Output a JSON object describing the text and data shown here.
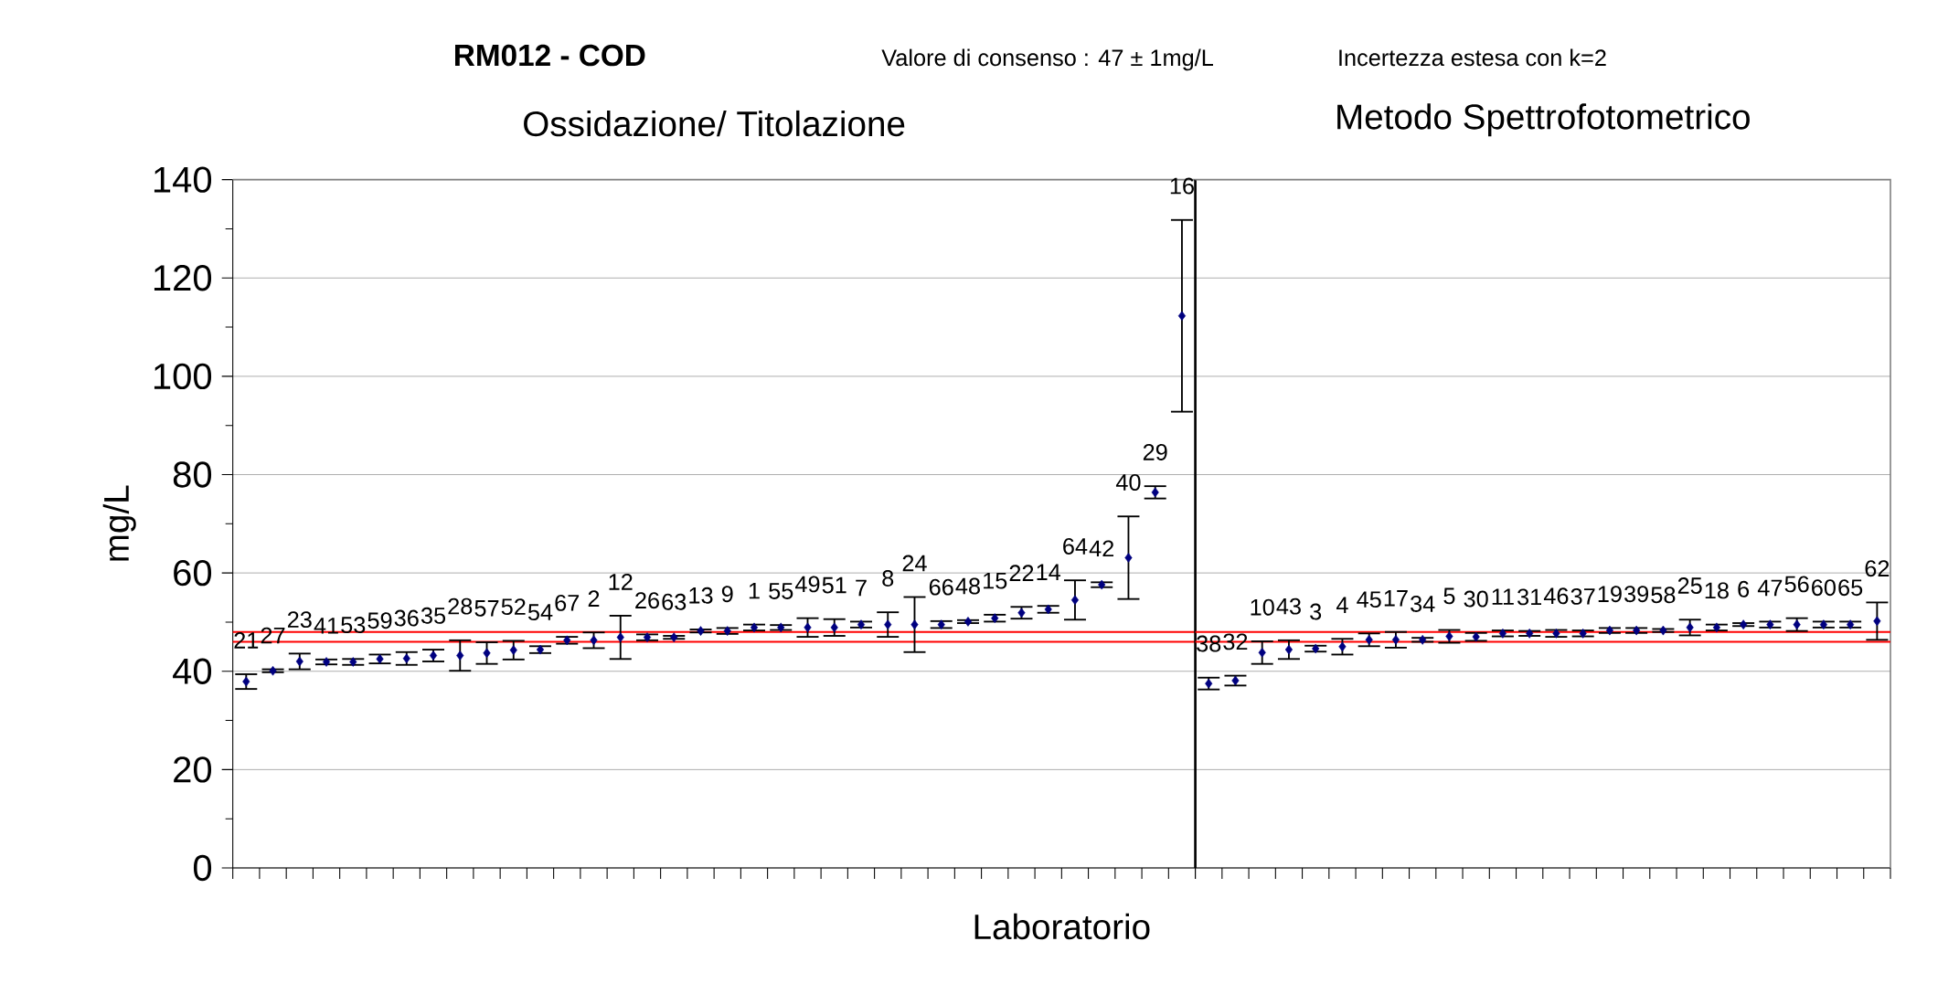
{
  "chart_data": [
    {
      "type": "scatter",
      "title": "Ossidazione/ Titolazione",
      "annotations": [
        "RM012 -  COD",
        "Valore di consenso : 47 ± 1mg/L",
        "Incertezza estesa con  k=2"
      ],
      "xlabel": "Laboratorio",
      "ylabel": "mg/L",
      "categories": [
        "21",
        "27",
        "23",
        "41",
        "53",
        "59",
        "36",
        "35",
        "28",
        "57",
        "52",
        "54",
        "67",
        "2",
        "12",
        "26",
        "63",
        "13",
        "9",
        "1",
        "55",
        "49",
        "51",
        "7",
        "8",
        "24",
        "66",
        "48",
        "15",
        "22",
        "14",
        "64",
        "42",
        "40",
        "29",
        "16"
      ],
      "values": [
        37.9,
        40.1,
        42.0,
        41.9,
        41.9,
        42.5,
        42.6,
        43.2,
        43.2,
        43.7,
        44.3,
        44.4,
        46.3,
        46.3,
        46.9,
        46.9,
        46.9,
        48.2,
        48.2,
        48.9,
        48.9,
        48.9,
        48.9,
        49.5,
        49.5,
        49.5,
        49.5,
        50.1,
        50.8,
        51.9,
        52.6,
        54.5,
        57.6,
        63.1,
        76.4,
        112.3
      ],
      "errors": [
        1.5,
        0.3,
        1.6,
        0.5,
        0.6,
        0.9,
        1.3,
        1.2,
        3.1,
        2.2,
        1.9,
        0.7,
        0.7,
        1.6,
        4.4,
        0.6,
        0.3,
        0.3,
        0.6,
        0.6,
        0.5,
        1.9,
        1.7,
        0.6,
        2.5,
        5.6,
        0.7,
        0.3,
        0.7,
        1.2,
        0.7,
        4.0,
        0.5,
        8.4,
        1.25,
        19.5
      ],
      "color": "#000080",
      "marker": "diamond",
      "ylim": [
        0,
        140
      ],
      "yticks": [
        0,
        20,
        40,
        60,
        80,
        100,
        120,
        140
      ],
      "grid": "y",
      "tick_labels": "y",
      "ref_lines": [
        {
          "axis": "y",
          "value": 46,
          "color": "#ff0000"
        },
        {
          "axis": "y",
          "value": 48,
          "color": "#ff0000"
        }
      ]
    },
    {
      "type": "scatter",
      "title": "Metodo Spettrofotometrico",
      "categories": [
        "38",
        "32",
        "10",
        "43",
        "3",
        "4",
        "45",
        "17",
        "34",
        "5",
        "30",
        "11",
        "31",
        "46",
        "37",
        "19",
        "39",
        "58",
        "25",
        "18",
        "6",
        "47",
        "56",
        "60",
        "65",
        "62"
      ],
      "values": [
        37.5,
        38.1,
        43.8,
        44.4,
        44.6,
        45.0,
        46.4,
        46.4,
        46.4,
        47.1,
        47.0,
        47.7,
        47.7,
        47.7,
        47.7,
        48.3,
        48.3,
        48.3,
        48.9,
        48.9,
        49.5,
        49.5,
        49.5,
        49.5,
        49.5,
        50.2
      ],
      "errors": [
        1.2,
        1.0,
        2.3,
        1.9,
        0.6,
        1.6,
        1.3,
        1.6,
        0.4,
        1.3,
        0.8,
        0.6,
        0.5,
        0.7,
        0.6,
        0.5,
        0.5,
        0.3,
        1.6,
        0.6,
        0.3,
        0.6,
        1.3,
        0.6,
        0.6,
        3.8
      ],
      "color": "#000080",
      "marker": "diamond",
      "ylim": [
        0,
        140
      ],
      "yticks": [
        0,
        20,
        40,
        60,
        80,
        100,
        120,
        140
      ],
      "grid": "y",
      "tick_labels": false,
      "ref_lines": [
        {
          "axis": "y",
          "value": 46,
          "color": "#ff0000"
        },
        {
          "axis": "y",
          "value": 48,
          "color": "#ff0000"
        }
      ]
    }
  ]
}
